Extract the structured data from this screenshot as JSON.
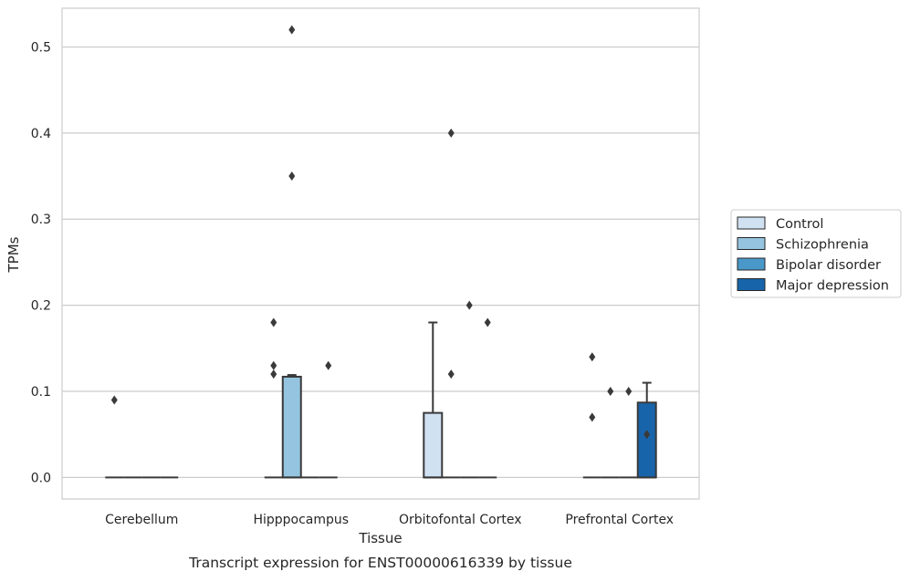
{
  "chart_data": {
    "type": "box",
    "caption": "Transcript expression for ENST00000616339 by tissue",
    "xlabel": "Tissue",
    "ylabel": "TPMs",
    "ylim": [
      -0.025,
      0.545
    ],
    "yticks": [
      0.0,
      0.1,
      0.2,
      0.3,
      0.4,
      0.5
    ],
    "ytick_labels": [
      "0.0",
      "0.1",
      "0.2",
      "0.3",
      "0.4",
      "0.5"
    ],
    "grid": "horizontal",
    "legend_position": "right",
    "categories": [
      "Cerebellum",
      "Hipppocampus",
      "Orbitofontal Cortex",
      "Prefrontal Cortex"
    ],
    "series": [
      {
        "name": "Control",
        "color": "#d0e1f2",
        "boxes": [
          {
            "q1": 0,
            "median": 0,
            "q3": 0,
            "whislo": 0,
            "whishi": 0,
            "fliers": [
              0.09
            ]
          },
          {
            "q1": 0,
            "median": 0,
            "q3": 0,
            "whislo": 0,
            "whishi": 0,
            "fliers": [
              0.12,
              0.13,
              0.18
            ]
          },
          {
            "q1": 0,
            "median": 0,
            "q3": 0.075,
            "whislo": 0,
            "whishi": 0.18,
            "fliers": []
          },
          {
            "q1": 0,
            "median": 0,
            "q3": 0,
            "whislo": 0,
            "whishi": 0,
            "fliers": [
              0.07,
              0.14
            ]
          }
        ]
      },
      {
        "name": "Schizophrenia",
        "color": "#94c4df",
        "boxes": [
          {
            "q1": 0,
            "median": 0,
            "q3": 0,
            "whislo": 0,
            "whishi": 0,
            "fliers": []
          },
          {
            "q1": 0,
            "median": 0,
            "q3": 0.117,
            "whislo": 0,
            "whishi": 0.119,
            "fliers": [
              0.35,
              0.52
            ]
          },
          {
            "q1": 0,
            "median": 0,
            "q3": 0,
            "whislo": 0,
            "whishi": 0,
            "fliers": [
              0.12,
              0.4
            ]
          },
          {
            "q1": 0,
            "median": 0,
            "q3": 0,
            "whislo": 0,
            "whishi": 0,
            "fliers": [
              0.1
            ]
          }
        ]
      },
      {
        "name": "Bipolar disorder",
        "color": "#4a98c9",
        "boxes": [
          {
            "q1": 0,
            "median": 0,
            "q3": 0,
            "whislo": 0,
            "whishi": 0,
            "fliers": []
          },
          {
            "q1": 0,
            "median": 0,
            "q3": 0,
            "whislo": 0,
            "whishi": 0,
            "fliers": []
          },
          {
            "q1": 0,
            "median": 0,
            "q3": 0,
            "whislo": 0,
            "whishi": 0,
            "fliers": [
              0.2
            ]
          },
          {
            "q1": 0,
            "median": 0,
            "q3": 0,
            "whislo": 0,
            "whishi": 0,
            "fliers": [
              0.1
            ]
          }
        ]
      },
      {
        "name": "Major depression",
        "color": "#1764ab",
        "boxes": [
          {
            "q1": 0,
            "median": 0,
            "q3": 0,
            "whislo": 0,
            "whishi": 0,
            "fliers": []
          },
          {
            "q1": 0,
            "median": 0,
            "q3": 0,
            "whislo": 0,
            "whishi": 0,
            "fliers": [
              0.13
            ]
          },
          {
            "q1": 0,
            "median": 0,
            "q3": 0,
            "whislo": 0,
            "whishi": 0,
            "fliers": [
              0.18
            ]
          },
          {
            "q1": 0,
            "median": 0,
            "q3": 0.087,
            "whislo": 0,
            "whishi": 0.11,
            "fliers": [
              0.05
            ]
          }
        ]
      }
    ]
  }
}
